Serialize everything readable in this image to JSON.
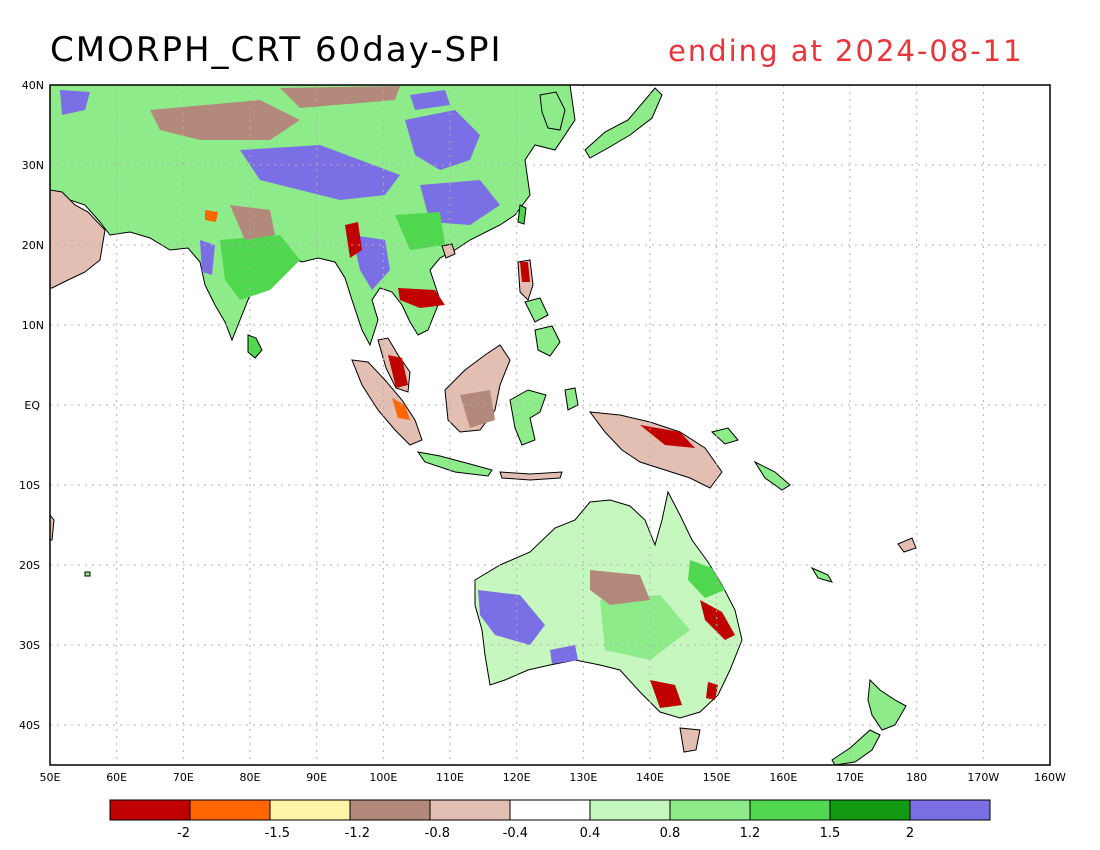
{
  "title": "CMORPH_CRT 60day-SPI",
  "subtitle": "ending at 2024-08-11",
  "map": {
    "lat_labels": [
      "40N",
      "30N",
      "20N",
      "10N",
      "EQ",
      "10S",
      "20S",
      "30S",
      "40S"
    ],
    "lon_labels": [
      "50E",
      "60E",
      "70E",
      "80E",
      "90E",
      "100E",
      "110E",
      "120E",
      "130E",
      "140E",
      "150E",
      "160E",
      "170E",
      "180",
      "170W",
      "160W"
    ]
  },
  "colorbar": {
    "colors": [
      "#c00000",
      "#ff6600",
      "#fff5a8",
      "#b3897c",
      "#e2beb3",
      "#ffffff",
      "#c5f7be",
      "#8eeb8a",
      "#4fd74f",
      "#129b12",
      "#7b6fe6"
    ],
    "labels": [
      "-2",
      "-1.5",
      "-1.2",
      "-0.8",
      "-0.4",
      "0.4",
      "0.8",
      "1.2",
      "1.5",
      "2"
    ]
  },
  "colors": {
    "coast": "#000000",
    "grid": "#b0b0b0",
    "subtitle": "#e8343a"
  }
}
